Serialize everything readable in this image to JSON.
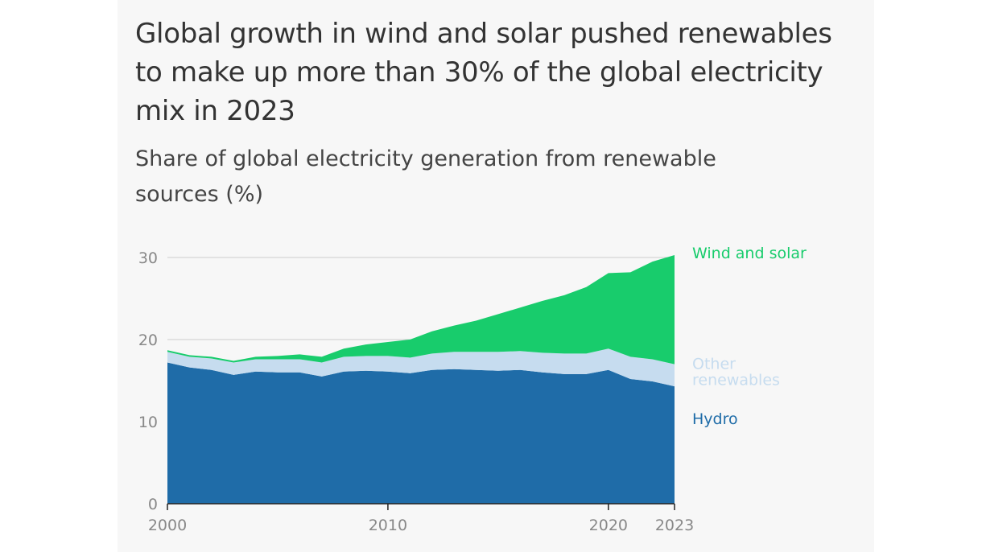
{
  "chart_data": {
    "type": "area",
    "stacked": true,
    "title": "Global growth in wind and solar pushed renewables to make up more than 30% of the global electricity mix in 2023",
    "subtitle": "Share of global electricity generation from renewable sources (%)",
    "x": [
      2000,
      2001,
      2002,
      2003,
      2004,
      2005,
      2006,
      2007,
      2008,
      2009,
      2010,
      2011,
      2012,
      2013,
      2014,
      2015,
      2016,
      2017,
      2018,
      2019,
      2020,
      2021,
      2022,
      2023
    ],
    "x_ticks": [
      "2000",
      "2010",
      "2020",
      "2023"
    ],
    "y_ticks": [
      "0",
      "10",
      "20",
      "30"
    ],
    "ylim": [
      0,
      30
    ],
    "series": [
      {
        "name": "Hydro",
        "label": "Hydro",
        "color": "#1f6ca8",
        "values": [
          17.2,
          16.6,
          16.3,
          15.7,
          16.1,
          16.0,
          16.0,
          15.5,
          16.1,
          16.2,
          16.1,
          15.9,
          16.3,
          16.4,
          16.3,
          16.2,
          16.3,
          16.0,
          15.8,
          15.8,
          16.3,
          15.2,
          14.9,
          14.3
        ]
      },
      {
        "name": "Other renewables",
        "label_lines": [
          "Other",
          "renewables"
        ],
        "color": "#c6dcef",
        "values": [
          1.3,
          1.3,
          1.4,
          1.5,
          1.5,
          1.6,
          1.6,
          1.7,
          1.8,
          1.8,
          1.9,
          1.9,
          2.0,
          2.1,
          2.2,
          2.3,
          2.3,
          2.4,
          2.5,
          2.5,
          2.6,
          2.7,
          2.7,
          2.7
        ]
      },
      {
        "name": "Wind and solar",
        "label": "Wind and solar",
        "color": "#18cc6c",
        "values": [
          0.2,
          0.2,
          0.2,
          0.2,
          0.3,
          0.4,
          0.6,
          0.7,
          1.0,
          1.4,
          1.7,
          2.2,
          2.7,
          3.2,
          3.8,
          4.6,
          5.3,
          6.3,
          7.1,
          8.1,
          9.2,
          10.3,
          11.9,
          13.3
        ]
      }
    ]
  }
}
